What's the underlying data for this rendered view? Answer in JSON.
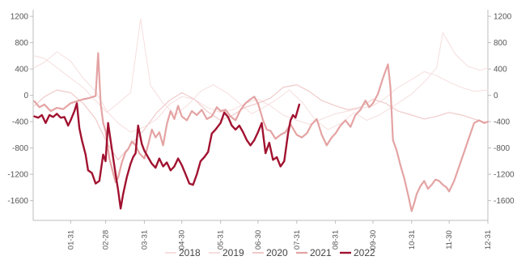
{
  "chart_data": {
    "type": "line",
    "title": "",
    "xlabel": "",
    "ylabel": "",
    "ylim": [
      -1900,
      1300
    ],
    "yticks": [
      1200,
      800,
      400,
      0,
      -400,
      -800,
      -1200,
      -1600
    ],
    "xticks": [
      "01-31",
      "02-28",
      "03-31",
      "04-30",
      "05-31",
      "06-30",
      "07-31",
      "08-31",
      "09-30",
      "10-31",
      "11-30",
      "12-31"
    ],
    "x_domain": [
      "01-01",
      "12-31"
    ],
    "legend_position": "bottom",
    "grid": false,
    "series": [
      {
        "name": "2018",
        "color": "#f7dede",
        "width": 1,
        "points": [
          [
            "01-02",
            600
          ],
          [
            "01-10",
            560
          ],
          [
            "01-20",
            420
          ],
          [
            "01-31",
            260
          ],
          [
            "02-10",
            120
          ],
          [
            "02-20",
            -80
          ],
          [
            "03-01",
            -260
          ],
          [
            "03-10",
            -120
          ],
          [
            "03-20",
            40
          ],
          [
            "03-28",
            1160
          ],
          [
            "04-05",
            150
          ],
          [
            "04-15",
            -120
          ],
          [
            "04-25",
            -300
          ],
          [
            "05-05",
            -140
          ],
          [
            "05-15",
            60
          ],
          [
            "05-25",
            160
          ],
          [
            "06-05",
            40
          ],
          [
            "06-15",
            -120
          ],
          [
            "06-25",
            -280
          ],
          [
            "07-05",
            -180
          ],
          [
            "07-15",
            -60
          ],
          [
            "07-25",
            80
          ],
          [
            "08-05",
            -120
          ],
          [
            "08-15",
            -380
          ],
          [
            "08-25",
            -520
          ],
          [
            "09-05",
            -420
          ],
          [
            "09-15",
            -260
          ],
          [
            "09-25",
            -380
          ],
          [
            "10-05",
            -300
          ],
          [
            "10-20",
            -120
          ],
          [
            "10-31",
            20
          ],
          [
            "11-10",
            200
          ],
          [
            "11-20",
            420
          ],
          [
            "11-25",
            950
          ],
          [
            "12-05",
            620
          ],
          [
            "12-15",
            440
          ],
          [
            "12-25",
            380
          ],
          [
            "12-31",
            420
          ]
        ]
      },
      {
        "name": "2019",
        "color": "#f7dede",
        "width": 1,
        "points": [
          [
            "01-02",
            420
          ],
          [
            "01-10",
            500
          ],
          [
            "01-20",
            660
          ],
          [
            "01-31",
            520
          ],
          [
            "02-10",
            260
          ],
          [
            "02-20",
            60
          ],
          [
            "03-01",
            -240
          ],
          [
            "03-10",
            -420
          ],
          [
            "03-20",
            -560
          ],
          [
            "03-31",
            -480
          ],
          [
            "04-10",
            -360
          ],
          [
            "04-20",
            -140
          ],
          [
            "04-30",
            -20
          ],
          [
            "05-10",
            -60
          ],
          [
            "05-20",
            -180
          ],
          [
            "05-31",
            -260
          ],
          [
            "06-10",
            -220
          ],
          [
            "06-20",
            -120
          ],
          [
            "06-30",
            -60
          ],
          [
            "07-10",
            -160
          ],
          [
            "07-20",
            -300
          ],
          [
            "07-31",
            -380
          ],
          [
            "08-10",
            -440
          ],
          [
            "08-20",
            -360
          ],
          [
            "08-31",
            -280
          ],
          [
            "09-10",
            -240
          ],
          [
            "09-20",
            -200
          ],
          [
            "09-30",
            -160
          ],
          [
            "10-10",
            -40
          ],
          [
            "10-20",
            120
          ],
          [
            "10-31",
            240
          ],
          [
            "11-10",
            360
          ],
          [
            "11-20",
            300
          ],
          [
            "11-30",
            200
          ],
          [
            "12-10",
            120
          ],
          [
            "12-20",
            60
          ],
          [
            "12-31",
            80
          ]
        ]
      },
      {
        "name": "2020",
        "color": "#f1caca",
        "width": 1.2,
        "points": [
          [
            "01-02",
            -160
          ],
          [
            "01-10",
            -20
          ],
          [
            "01-20",
            80
          ],
          [
            "01-31",
            40
          ],
          [
            "02-10",
            -120
          ],
          [
            "02-20",
            -360
          ],
          [
            "03-01",
            -720
          ],
          [
            "03-10",
            -980
          ],
          [
            "03-20",
            -760
          ],
          [
            "03-31",
            -520
          ],
          [
            "04-10",
            -260
          ],
          [
            "04-20",
            -80
          ],
          [
            "04-30",
            40
          ],
          [
            "05-10",
            -60
          ],
          [
            "05-20",
            -240
          ],
          [
            "05-31",
            -380
          ],
          [
            "06-10",
            -300
          ],
          [
            "06-20",
            -180
          ],
          [
            "06-30",
            -120
          ],
          [
            "07-10",
            -40
          ],
          [
            "07-20",
            120
          ],
          [
            "07-31",
            160
          ],
          [
            "08-10",
            60
          ],
          [
            "08-20",
            -80
          ],
          [
            "08-31",
            -160
          ],
          [
            "09-10",
            -220
          ],
          [
            "09-20",
            -180
          ],
          [
            "09-30",
            -60
          ],
          [
            "10-10",
            -120
          ],
          [
            "10-20",
            -240
          ],
          [
            "10-31",
            -300
          ],
          [
            "11-10",
            -360
          ],
          [
            "11-20",
            -320
          ],
          [
            "11-30",
            -260
          ],
          [
            "12-10",
            -300
          ],
          [
            "12-20",
            -360
          ],
          [
            "12-31",
            -420
          ]
        ]
      },
      {
        "name": "2021",
        "color": "#e4a3a3",
        "width": 2.2,
        "points": [
          [
            "01-02",
            -90
          ],
          [
            "01-06",
            -180
          ],
          [
            "01-10",
            -140
          ],
          [
            "01-15",
            -240
          ],
          [
            "01-20",
            -190
          ],
          [
            "01-25",
            -210
          ],
          [
            "01-31",
            -120
          ],
          [
            "02-05",
            -90
          ],
          [
            "02-10",
            -60
          ],
          [
            "02-15",
            -40
          ],
          [
            "02-20",
            -10
          ],
          [
            "02-22",
            640
          ],
          [
            "02-24",
            -120
          ],
          [
            "02-26",
            -420
          ],
          [
            "02-28",
            -540
          ],
          [
            "03-03",
            -960
          ],
          [
            "03-06",
            -1180
          ],
          [
            "03-08",
            -1320
          ],
          [
            "03-10",
            -1250
          ],
          [
            "03-13",
            -1020
          ],
          [
            "03-16",
            -860
          ],
          [
            "03-18",
            -820
          ],
          [
            "03-21",
            -700
          ],
          [
            "03-24",
            -760
          ],
          [
            "03-27",
            -880
          ],
          [
            "03-31",
            -960
          ],
          [
            "04-03",
            -760
          ],
          [
            "04-06",
            -520
          ],
          [
            "04-09",
            -640
          ],
          [
            "04-12",
            -560
          ],
          [
            "04-15",
            -760
          ],
          [
            "04-18",
            -440
          ],
          [
            "04-21",
            -240
          ],
          [
            "04-24",
            -360
          ],
          [
            "04-27",
            -160
          ],
          [
            "04-30",
            -320
          ],
          [
            "05-04",
            -380
          ],
          [
            "05-08",
            -240
          ],
          [
            "05-12",
            -300
          ],
          [
            "05-16",
            -220
          ],
          [
            "05-20",
            -360
          ],
          [
            "05-24",
            -320
          ],
          [
            "05-28",
            -180
          ],
          [
            "05-31",
            -240
          ],
          [
            "06-04",
            -220
          ],
          [
            "06-08",
            -320
          ],
          [
            "06-12",
            -380
          ],
          [
            "06-16",
            -220
          ],
          [
            "06-20",
            -120
          ],
          [
            "06-24",
            -60
          ],
          [
            "06-27",
            -20
          ],
          [
            "06-30",
            -120
          ],
          [
            "07-04",
            -380
          ],
          [
            "07-07",
            -520
          ],
          [
            "07-10",
            -540
          ],
          [
            "07-14",
            -660
          ],
          [
            "07-18",
            -600
          ],
          [
            "07-22",
            -560
          ],
          [
            "07-26",
            -440
          ],
          [
            "07-31",
            -600
          ],
          [
            "08-04",
            -640
          ],
          [
            "08-08",
            -580
          ],
          [
            "08-12",
            -440
          ],
          [
            "08-16",
            -360
          ],
          [
            "08-20",
            -600
          ],
          [
            "08-24",
            -760
          ],
          [
            "08-28",
            -640
          ],
          [
            "08-31",
            -580
          ],
          [
            "09-04",
            -460
          ],
          [
            "09-08",
            -380
          ],
          [
            "09-12",
            -480
          ],
          [
            "09-16",
            -300
          ],
          [
            "09-20",
            -220
          ],
          [
            "09-24",
            -80
          ],
          [
            "09-27",
            -180
          ],
          [
            "09-30",
            -120
          ],
          [
            "10-04",
            20
          ],
          [
            "10-08",
            260
          ],
          [
            "10-12",
            470
          ],
          [
            "10-14",
            120
          ],
          [
            "10-16",
            -680
          ],
          [
            "10-19",
            -840
          ],
          [
            "10-22",
            -1060
          ],
          [
            "10-25",
            -1260
          ],
          [
            "10-28",
            -1500
          ],
          [
            "10-31",
            -1760
          ],
          [
            "11-02",
            -1640
          ],
          [
            "11-04",
            -1500
          ],
          [
            "11-07",
            -1380
          ],
          [
            "11-10",
            -1300
          ],
          [
            "11-13",
            -1420
          ],
          [
            "11-16",
            -1360
          ],
          [
            "11-19",
            -1280
          ],
          [
            "11-22",
            -1300
          ],
          [
            "11-25",
            -1360
          ],
          [
            "11-28",
            -1400
          ],
          [
            "11-30",
            -1460
          ],
          [
            "12-04",
            -1300
          ],
          [
            "12-08",
            -1080
          ],
          [
            "12-12",
            -860
          ],
          [
            "12-16",
            -640
          ],
          [
            "12-20",
            -420
          ],
          [
            "12-24",
            -380
          ],
          [
            "12-28",
            -420
          ],
          [
            "12-31",
            -400
          ]
        ]
      },
      {
        "name": "2022",
        "color": "#a11230",
        "width": 2.4,
        "points": [
          [
            "01-02",
            -320
          ],
          [
            "01-05",
            -340
          ],
          [
            "01-08",
            -300
          ],
          [
            "01-11",
            -420
          ],
          [
            "01-14",
            -300
          ],
          [
            "01-17",
            -330
          ],
          [
            "01-20",
            -280
          ],
          [
            "01-23",
            -340
          ],
          [
            "01-26",
            -330
          ],
          [
            "01-29",
            -460
          ],
          [
            "01-31",
            -380
          ],
          [
            "02-03",
            -240
          ],
          [
            "02-05",
            -120
          ],
          [
            "02-07",
            -500
          ],
          [
            "02-09",
            -680
          ],
          [
            "02-12",
            -900
          ],
          [
            "02-14",
            -1140
          ],
          [
            "02-17",
            -1180
          ],
          [
            "02-20",
            -1340
          ],
          [
            "02-23",
            -1300
          ],
          [
            "02-26",
            -900
          ],
          [
            "02-28",
            -1000
          ],
          [
            "03-02",
            -420
          ],
          [
            "03-05",
            -820
          ],
          [
            "03-08",
            -1200
          ],
          [
            "03-10",
            -1440
          ],
          [
            "03-12",
            -1720
          ],
          [
            "03-14",
            -1500
          ],
          [
            "03-17",
            -1240
          ],
          [
            "03-20",
            -1040
          ],
          [
            "03-22",
            -940
          ],
          [
            "03-24",
            -880
          ],
          [
            "03-26",
            -460
          ],
          [
            "03-29",
            -740
          ],
          [
            "03-31",
            -840
          ],
          [
            "04-03",
            -940
          ],
          [
            "04-06",
            -1040
          ],
          [
            "04-09",
            -1100
          ],
          [
            "04-12",
            -960
          ],
          [
            "04-15",
            -1080
          ],
          [
            "04-18",
            -1020
          ],
          [
            "04-21",
            -1140
          ],
          [
            "04-24",
            -1080
          ],
          [
            "04-27",
            -960
          ],
          [
            "04-30",
            -1060
          ],
          [
            "05-03",
            -1200
          ],
          [
            "05-06",
            -1340
          ],
          [
            "05-09",
            -1360
          ],
          [
            "05-12",
            -1200
          ],
          [
            "05-15",
            -1000
          ],
          [
            "05-18",
            -940
          ],
          [
            "05-21",
            -860
          ],
          [
            "05-24",
            -580
          ],
          [
            "05-27",
            -520
          ],
          [
            "05-31",
            -420
          ],
          [
            "06-03",
            -260
          ],
          [
            "06-06",
            -330
          ],
          [
            "06-09",
            -460
          ],
          [
            "06-12",
            -520
          ],
          [
            "06-15",
            -460
          ],
          [
            "06-18",
            -560
          ],
          [
            "06-21",
            -680
          ],
          [
            "06-24",
            -760
          ],
          [
            "06-27",
            -680
          ],
          [
            "06-30",
            -560
          ],
          [
            "07-03",
            -420
          ],
          [
            "07-06",
            -880
          ],
          [
            "07-09",
            -720
          ],
          [
            "07-12",
            -980
          ],
          [
            "07-15",
            -940
          ],
          [
            "07-18",
            -1080
          ],
          [
            "07-21",
            -1000
          ],
          [
            "07-24",
            -580
          ],
          [
            "07-26",
            -380
          ],
          [
            "07-28",
            -300
          ],
          [
            "07-30",
            -340
          ],
          [
            "08-02",
            -140
          ]
        ]
      }
    ]
  }
}
